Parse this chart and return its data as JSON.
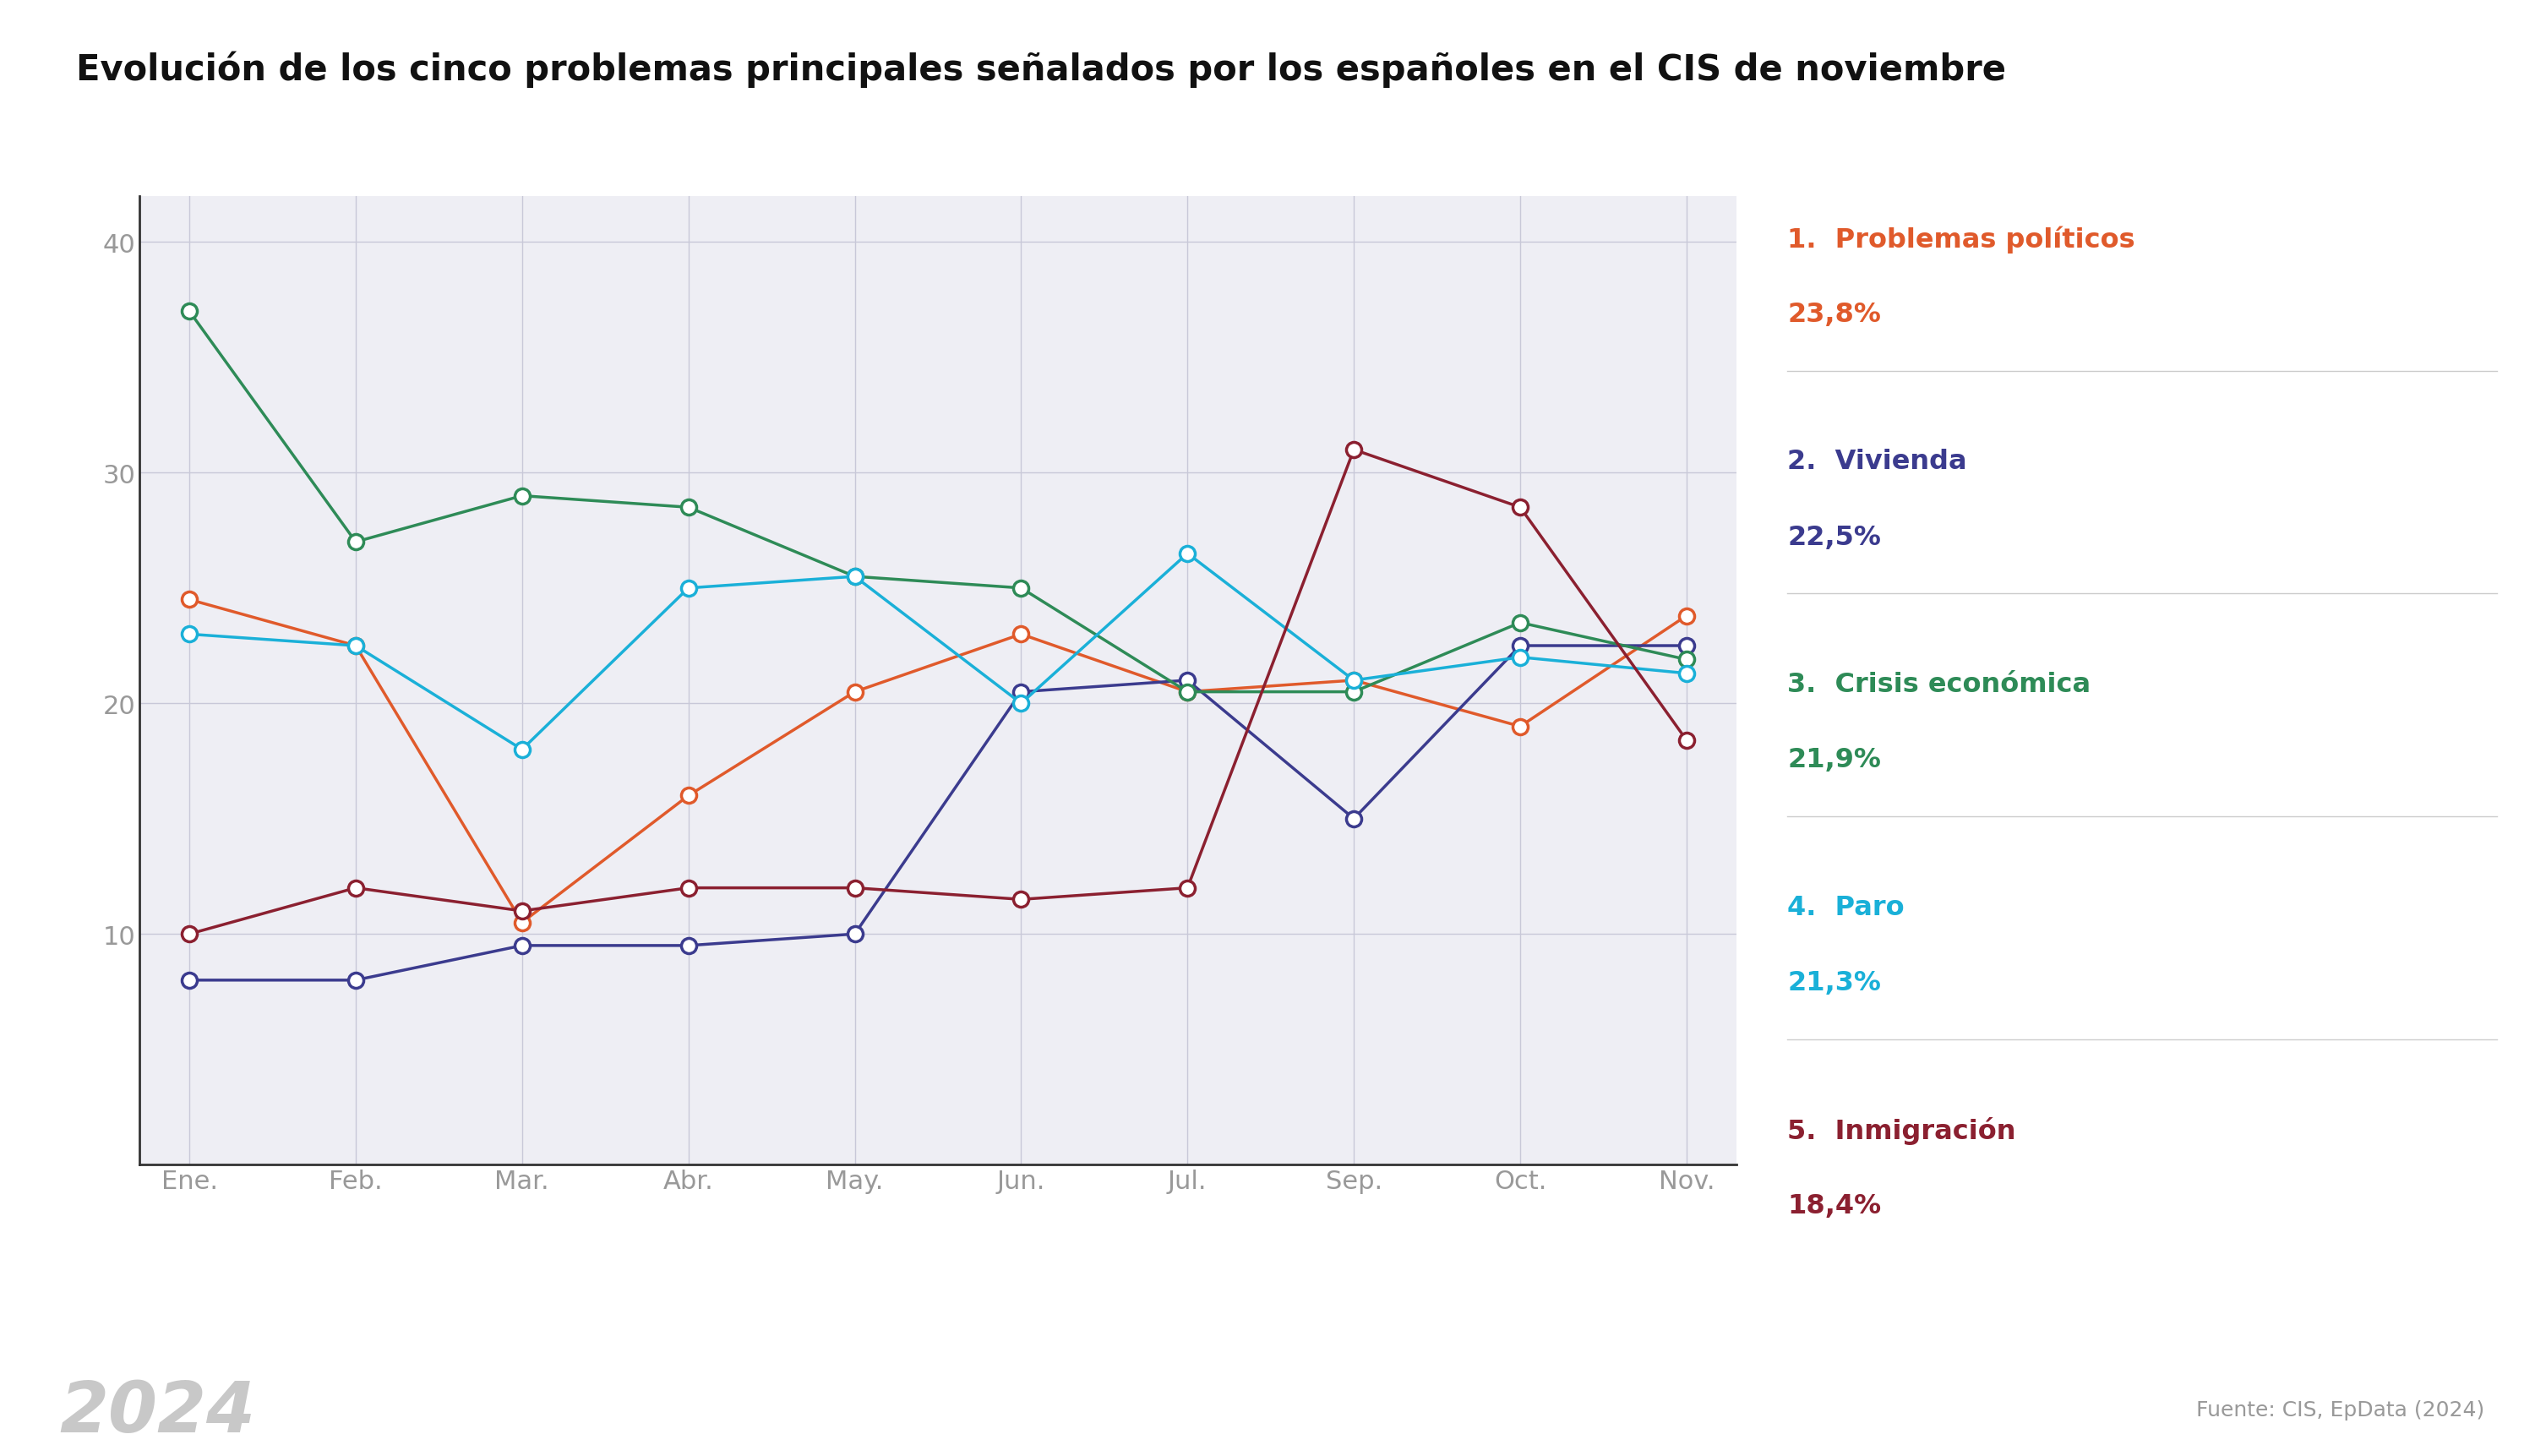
{
  "title": "Evolución de los cinco problemas principales señalados por los españoles en el CIS de noviembre",
  "months": [
    "Ene.",
    "Feb.",
    "Mar.",
    "Abr.",
    "May.",
    "Jun.",
    "Jul.",
    "Sep.",
    "Oct.",
    "Nov."
  ],
  "series": {
    "problemas_politicos": {
      "label": "Problemas políticos",
      "rank": "1.",
      "value_label": "23,8%",
      "color": "#e05a2b",
      "values": [
        24.5,
        22.5,
        10.5,
        16.0,
        20.5,
        23.0,
        20.5,
        21.0,
        19.0,
        23.8
      ]
    },
    "vivienda": {
      "label": "Vivienda",
      "rank": "2.",
      "value_label": "22,5%",
      "color": "#3b3b8e",
      "values": [
        8.0,
        8.0,
        9.5,
        9.5,
        10.0,
        20.5,
        21.0,
        15.0,
        22.5,
        22.5
      ]
    },
    "crisis_economica": {
      "label": "Crisis económica",
      "rank": "3.",
      "value_label": "21,9%",
      "color": "#2e8b57",
      "values": [
        37.0,
        27.0,
        29.0,
        28.5,
        25.5,
        25.0,
        20.5,
        20.5,
        23.5,
        21.9
      ]
    },
    "paro": {
      "label": "Paro",
      "rank": "4.",
      "value_label": "21,3%",
      "color": "#1ab0d8",
      "values": [
        23.0,
        22.5,
        18.0,
        25.0,
        25.5,
        20.0,
        26.5,
        21.0,
        22.0,
        21.3
      ]
    },
    "inmigracion": {
      "label": "Inmigración",
      "rank": "5.",
      "value_label": "18,4%",
      "color": "#8b2030",
      "values": [
        10.0,
        12.0,
        11.0,
        12.0,
        12.0,
        11.5,
        12.0,
        31.0,
        28.5,
        18.4
      ]
    }
  },
  "ylim": [
    0,
    42
  ],
  "yticks": [
    10,
    20,
    30,
    40
  ],
  "source_text": "Fuente: CIS, EpData (2024)",
  "year_label": "2024",
  "bg_color": "#ffffff",
  "plot_bg_color": "#eeeef4",
  "grid_color": "#c8c8d8",
  "axis_text_color": "#999999",
  "legend_line_color": "#cccccc",
  "spine_color": "#333333",
  "title_fontsize": 30,
  "tick_fontsize": 22,
  "legend_label_fontsize": 23,
  "legend_value_fontsize": 23,
  "source_fontsize": 18,
  "year_fontsize": 60,
  "line_width": 2.5,
  "marker_size": 13
}
